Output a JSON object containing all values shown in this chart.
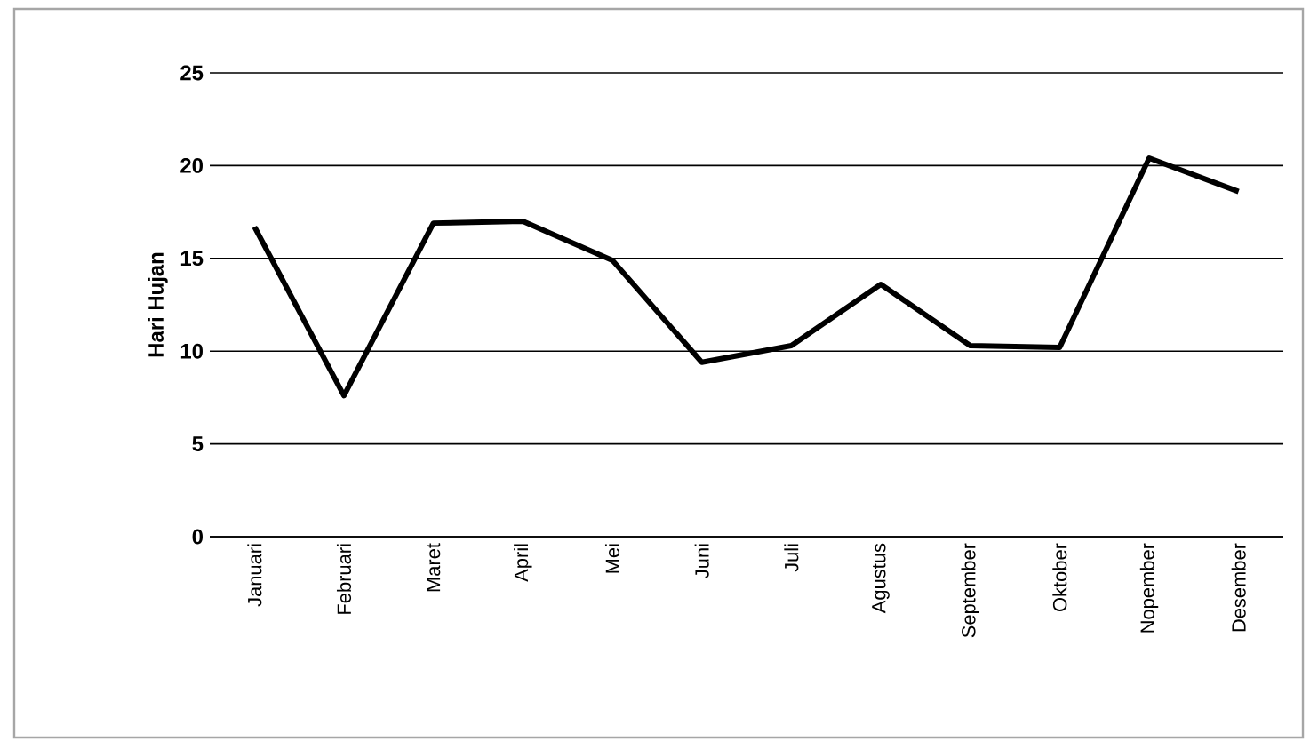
{
  "chart_data": {
    "type": "line",
    "ylabel": "Hari Hujan",
    "categories": [
      "Januari",
      "Februari",
      "Maret",
      "April",
      "Mei",
      "Juni",
      "Juli",
      "Agustus",
      "September",
      "Oktober",
      "Nopember",
      "Desember"
    ],
    "values": [
      16.7,
      7.6,
      16.9,
      17.0,
      14.9,
      9.4,
      10.3,
      13.6,
      10.3,
      10.2,
      20.4,
      18.6
    ],
    "color": "#000000",
    "ylim": [
      0,
      25
    ],
    "yticks": [
      0,
      5,
      10,
      15,
      20,
      25
    ],
    "grid": "y",
    "marker": "none",
    "line_style": "solid"
  }
}
